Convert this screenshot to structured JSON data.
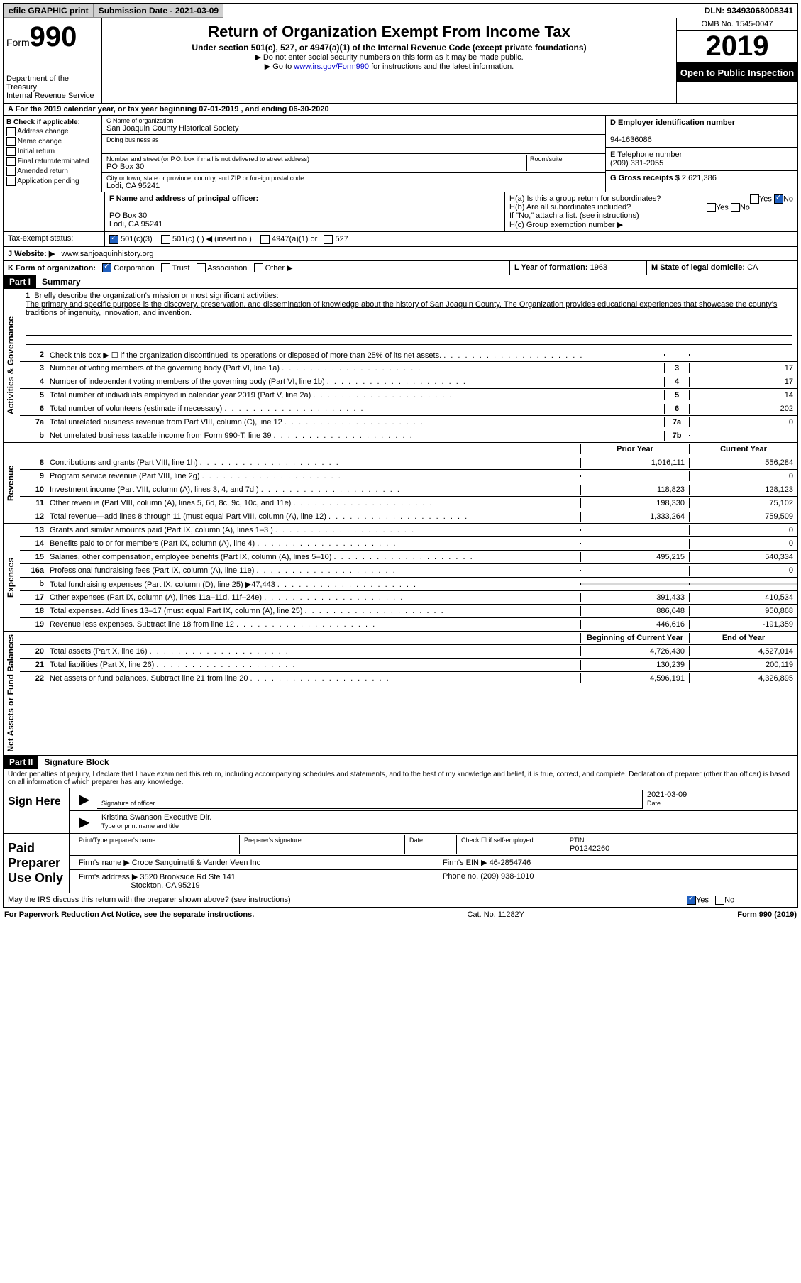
{
  "topbar": {
    "efile": "efile GRAPHIC print",
    "submission": "Submission Date - 2021-03-09",
    "dln": "DLN: 93493068008341"
  },
  "header": {
    "form_word": "Form",
    "form_num": "990",
    "dept": "Department of the Treasury\nInternal Revenue Service",
    "title": "Return of Organization Exempt From Income Tax",
    "subtitle": "Under section 501(c), 527, or 4947(a)(1) of the Internal Revenue Code (except private foundations)",
    "note1": "▶ Do not enter social security numbers on this form as it may be made public.",
    "note2_pre": "▶ Go to ",
    "note2_link": "www.irs.gov/Form990",
    "note2_post": " for instructions and the latest information.",
    "omb": "OMB No. 1545-0047",
    "year": "2019",
    "open": "Open to Public Inspection"
  },
  "rowA": "A For the 2019 calendar year, or tax year beginning 07-01-2019   , and ending 06-30-2020",
  "B": {
    "title": "B Check if applicable:",
    "items": [
      "Address change",
      "Name change",
      "Initial return",
      "Final return/terminated",
      "Amended return",
      "Application pending"
    ]
  },
  "C": {
    "name_label": "C Name of organization",
    "name": "San Joaquin County Historical Society",
    "dba_label": "Doing business as",
    "addr_label": "Number and street (or P.O. box if mail is not delivered to street address)",
    "room_label": "Room/suite",
    "addr": "PO Box 30",
    "city_label": "City or town, state or province, country, and ZIP or foreign postal code",
    "city": "Lodi, CA  95241"
  },
  "D": {
    "ein_label": "D Employer identification number",
    "ein": "94-1636086",
    "tel_label": "E Telephone number",
    "tel": "(209) 331-2055",
    "gross_label": "G Gross receipts $",
    "gross": "2,621,386"
  },
  "F": {
    "label": "F  Name and address of principal officer:",
    "addr1": "PO Box 30",
    "addr2": "Lodi, CA  95241"
  },
  "H": {
    "a": "H(a)  Is this a group return for subordinates?",
    "b": "H(b)  Are all subordinates included?",
    "ifno": "If \"No,\" attach a list. (see instructions)",
    "c": "H(c)  Group exemption number ▶",
    "yes": "Yes",
    "no": "No"
  },
  "I": {
    "label": "Tax-exempt status:",
    "opts": [
      "501(c)(3)",
      "501(c) (   ) ◀ (insert no.)",
      "4947(a)(1) or",
      "527"
    ]
  },
  "J": {
    "label": "J   Website: ▶",
    "val": "www.sanjoaquinhistory.org"
  },
  "K": {
    "label": "K Form of organization:",
    "opts": [
      "Corporation",
      "Trust",
      "Association",
      "Other ▶"
    ]
  },
  "L": {
    "label": "L Year of formation:",
    "val": "1963"
  },
  "M": {
    "label": "M State of legal domicile:",
    "val": "CA"
  },
  "part1": {
    "label": "Part I",
    "title": "Summary"
  },
  "mission": {
    "num": "1",
    "label": "Briefly describe the organization's mission or most significant activities:",
    "text": "The primary and specific purpose is the discovery, preservation, and dissemination of knowledge about the history of San Joaquin County. The Organization provides educational experiences that showcase the county's traditions of ingenuity, innovation, and invention."
  },
  "sections": {
    "gov": "Activities & Governance",
    "rev": "Revenue",
    "exp": "Expenses",
    "net": "Net Assets or Fund Balances"
  },
  "gov_lines": [
    {
      "n": "2",
      "t": "Check this box ▶ ☐  if the organization discontinued its operations or disposed of more than 25% of its net assets.",
      "box": "",
      "v": ""
    },
    {
      "n": "3",
      "t": "Number of voting members of the governing body (Part VI, line 1a)",
      "box": "3",
      "v": "17"
    },
    {
      "n": "4",
      "t": "Number of independent voting members of the governing body (Part VI, line 1b)",
      "box": "4",
      "v": "17"
    },
    {
      "n": "5",
      "t": "Total number of individuals employed in calendar year 2019 (Part V, line 2a)",
      "box": "5",
      "v": "14"
    },
    {
      "n": "6",
      "t": "Total number of volunteers (estimate if necessary)",
      "box": "6",
      "v": "202"
    },
    {
      "n": "7a",
      "t": "Total unrelated business revenue from Part VIII, column (C), line 12",
      "box": "7a",
      "v": "0"
    },
    {
      "n": "b",
      "t": "Net unrelated business taxable income from Form 990-T, line 39",
      "box": "7b",
      "v": ""
    }
  ],
  "col_headers": {
    "prior": "Prior Year",
    "current": "Current Year",
    "boy": "Beginning of Current Year",
    "eoy": "End of Year"
  },
  "rev_lines": [
    {
      "n": "8",
      "t": "Contributions and grants (Part VIII, line 1h)",
      "p": "1,016,111",
      "c": "556,284"
    },
    {
      "n": "9",
      "t": "Program service revenue (Part VIII, line 2g)",
      "p": "",
      "c": "0"
    },
    {
      "n": "10",
      "t": "Investment income (Part VIII, column (A), lines 3, 4, and 7d )",
      "p": "118,823",
      "c": "128,123"
    },
    {
      "n": "11",
      "t": "Other revenue (Part VIII, column (A), lines 5, 6d, 8c, 9c, 10c, and 11e)",
      "p": "198,330",
      "c": "75,102"
    },
    {
      "n": "12",
      "t": "Total revenue—add lines 8 through 11 (must equal Part VIII, column (A), line 12)",
      "p": "1,333,264",
      "c": "759,509"
    }
  ],
  "exp_lines": [
    {
      "n": "13",
      "t": "Grants and similar amounts paid (Part IX, column (A), lines 1–3 )",
      "p": "",
      "c": "0"
    },
    {
      "n": "14",
      "t": "Benefits paid to or for members (Part IX, column (A), line 4)",
      "p": "",
      "c": "0"
    },
    {
      "n": "15",
      "t": "Salaries, other compensation, employee benefits (Part IX, column (A), lines 5–10)",
      "p": "495,215",
      "c": "540,334"
    },
    {
      "n": "16a",
      "t": "Professional fundraising fees (Part IX, column (A), line 11e)",
      "p": "",
      "c": "0"
    },
    {
      "n": "b",
      "t": "Total fundraising expenses (Part IX, column (D), line 25) ▶47,443",
      "p": "grey",
      "c": "grey"
    },
    {
      "n": "17",
      "t": "Other expenses (Part IX, column (A), lines 11a–11d, 11f–24e)",
      "p": "391,433",
      "c": "410,534"
    },
    {
      "n": "18",
      "t": "Total expenses. Add lines 13–17 (must equal Part IX, column (A), line 25)",
      "p": "886,648",
      "c": "950,868"
    },
    {
      "n": "19",
      "t": "Revenue less expenses. Subtract line 18 from line 12",
      "p": "446,616",
      "c": "-191,359"
    }
  ],
  "net_lines": [
    {
      "n": "20",
      "t": "Total assets (Part X, line 16)",
      "p": "4,726,430",
      "c": "4,527,014"
    },
    {
      "n": "21",
      "t": "Total liabilities (Part X, line 26)",
      "p": "130,239",
      "c": "200,119"
    },
    {
      "n": "22",
      "t": "Net assets or fund balances. Subtract line 21 from line 20",
      "p": "4,596,191",
      "c": "4,326,895"
    }
  ],
  "part2": {
    "label": "Part II",
    "title": "Signature Block"
  },
  "penalty": "Under penalties of perjury, I declare that I have examined this return, including accompanying schedules and statements, and to the best of my knowledge and belief, it is true, correct, and complete. Declaration of preparer (other than officer) is based on all information of which preparer has any knowledge.",
  "sign": {
    "here": "Sign Here",
    "sig_label": "Signature of officer",
    "date_label": "Date",
    "date": "2021-03-09",
    "name": "Kristina Swanson  Executive Dir.",
    "name_label": "Type or print name and title"
  },
  "paid": {
    "title": "Paid Preparer Use Only",
    "prep_name_label": "Print/Type preparer's name",
    "prep_sig_label": "Preparer's signature",
    "date_label": "Date",
    "check_label": "Check ☐ if self-employed",
    "ptin_label": "PTIN",
    "ptin": "P01242260",
    "firm_name_label": "Firm's name    ▶",
    "firm_name": "Croce Sanguinetti & Vander Veen Inc",
    "firm_ein_label": "Firm's EIN ▶",
    "firm_ein": "46-2854746",
    "firm_addr_label": "Firm's address ▶",
    "firm_addr1": "3520 Brookside Rd Ste 141",
    "firm_addr2": "Stockton, CA  95219",
    "phone_label": "Phone no.",
    "phone": "(209) 938-1010"
  },
  "discuss": "May the IRS discuss this return with the preparer shown above? (see instructions)",
  "footer": {
    "left": "For Paperwork Reduction Act Notice, see the separate instructions.",
    "mid": "Cat. No. 11282Y",
    "right": "Form 990 (2019)"
  }
}
